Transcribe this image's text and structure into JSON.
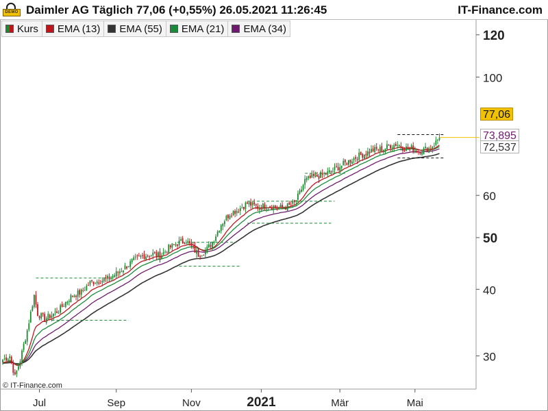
{
  "header": {
    "logo_label": "DEMO",
    "title": "Daimler AG Täglich 77,06 (+0,55%) 26.05.2021 11:26:45",
    "brand": "IT-Finance.com"
  },
  "legend": [
    {
      "label": "Kurs",
      "color": "#1a8a2e"
    },
    {
      "label": "EMA (13)",
      "color": "#c0141c"
    },
    {
      "label": "EMA (55)",
      "color": "#333333"
    },
    {
      "label": "EMA (21)",
      "color": "#1a8a3a"
    },
    {
      "label": "EMA (34)",
      "color": "#6e1a6e"
    }
  ],
  "copyright": "© IT-Finance.com",
  "price_tags": {
    "last": "77,06",
    "ema34": "73,895",
    "ema55": "72,537"
  },
  "chart_data": {
    "type": "candlestick",
    "scale": "log",
    "ylim": [
      26,
      128
    ],
    "y_ticks": [
      {
        "value": 120,
        "label": "120",
        "bold": true
      },
      {
        "value": 100,
        "label": "100",
        "bold": false
      },
      {
        "value": 60,
        "label": "60",
        "bold": false
      },
      {
        "value": 50,
        "label": "50",
        "bold": true
      },
      {
        "value": 40,
        "label": "40",
        "bold": false
      },
      {
        "value": 30,
        "label": "30",
        "bold": false
      }
    ],
    "x_ticks": [
      {
        "label": "Jul",
        "bold": false
      },
      {
        "label": "Sep",
        "bold": false
      },
      {
        "label": "Nov",
        "bold": false
      },
      {
        "label": "2021",
        "bold": true
      },
      {
        "label": "Mär",
        "bold": false
      },
      {
        "label": "Mai",
        "bold": false
      }
    ],
    "x_tick_positions": [
      21,
      65,
      108,
      148,
      193,
      236
    ],
    "bars": 260,
    "close_anchors": [
      [
        0,
        29.5
      ],
      [
        4,
        30.0
      ],
      [
        7,
        27.4
      ],
      [
        10,
        29.5
      ],
      [
        14,
        33.5
      ],
      [
        18,
        39.0
      ],
      [
        20,
        36.0
      ],
      [
        24,
        35.2
      ],
      [
        28,
        35.8
      ],
      [
        32,
        36.5
      ],
      [
        36,
        37.8
      ],
      [
        40,
        39.0
      ],
      [
        45,
        39.5
      ],
      [
        50,
        41.2
      ],
      [
        55,
        41.5
      ],
      [
        60,
        41.8
      ],
      [
        65,
        42.8
      ],
      [
        70,
        44.0
      ],
      [
        75,
        45.3
      ],
      [
        80,
        46.2
      ],
      [
        86,
        46.6
      ],
      [
        90,
        46.2
      ],
      [
        95,
        47.8
      ],
      [
        100,
        48.8
      ],
      [
        105,
        49.5
      ],
      [
        108,
        48.0
      ],
      [
        112,
        46.5
      ],
      [
        116,
        47.2
      ],
      [
        120,
        49.0
      ],
      [
        125,
        53.0
      ],
      [
        130,
        55.5
      ],
      [
        135,
        56.5
      ],
      [
        140,
        58.0
      ],
      [
        146,
        57.0
      ],
      [
        152,
        57.5
      ],
      [
        158,
        56.8
      ],
      [
        163,
        57.2
      ],
      [
        167,
        58.0
      ],
      [
        170,
        60.5
      ],
      [
        173,
        64.0
      ],
      [
        178,
        65.0
      ],
      [
        183,
        65.5
      ],
      [
        188,
        66.5
      ],
      [
        193,
        68.0
      ],
      [
        198,
        69.5
      ],
      [
        203,
        71.0
      ],
      [
        208,
        72.0
      ],
      [
        212,
        73.0
      ],
      [
        218,
        73.3
      ],
      [
        222,
        74.5
      ],
      [
        226,
        74.8
      ],
      [
        230,
        73.5
      ],
      [
        234,
        73.6
      ],
      [
        238,
        72.6
      ],
      [
        242,
        73.2
      ],
      [
        245,
        73.8
      ],
      [
        248,
        75.5
      ],
      [
        250,
        77.06
      ]
    ],
    "ema_series": [
      {
        "name": "EMA (13)",
        "period": 13,
        "color": "#c0141c"
      },
      {
        "name": "EMA (21)",
        "period": 21,
        "color": "#1a8a3a"
      },
      {
        "name": "EMA (34)",
        "period": 34,
        "color": "#6e1a6e"
      },
      {
        "name": "EMA (55)",
        "period": 55,
        "color": "#333333"
      }
    ],
    "support_resistance": [
      {
        "x0": 19,
        "x1": 60,
        "y": 42.0,
        "color": "#1a8a2e"
      },
      {
        "x0": 28,
        "x1": 72,
        "y": 35.0,
        "color": "#1a8a2e"
      },
      {
        "x0": 100,
        "x1": 134,
        "y": 49.0,
        "color": "#1a8a2e"
      },
      {
        "x0": 101,
        "x1": 136,
        "y": 44.2,
        "color": "#1a8a2e"
      },
      {
        "x0": 140,
        "x1": 190,
        "y": 58.5,
        "color": "#1a8a2e"
      },
      {
        "x0": 140,
        "x1": 188,
        "y": 53.2,
        "color": "#1a8a2e"
      },
      {
        "x0": 173,
        "x1": 196,
        "y": 66.0,
        "color": "#1a8a2e"
      },
      {
        "x0": 226,
        "x1": 253,
        "y": 78.0,
        "color": "#111111"
      },
      {
        "x0": 226,
        "x1": 253,
        "y": 70.5,
        "color": "#111111"
      }
    ],
    "last_value": 77.06,
    "ema34_last": 73.895,
    "ema55_last": 72.537
  }
}
